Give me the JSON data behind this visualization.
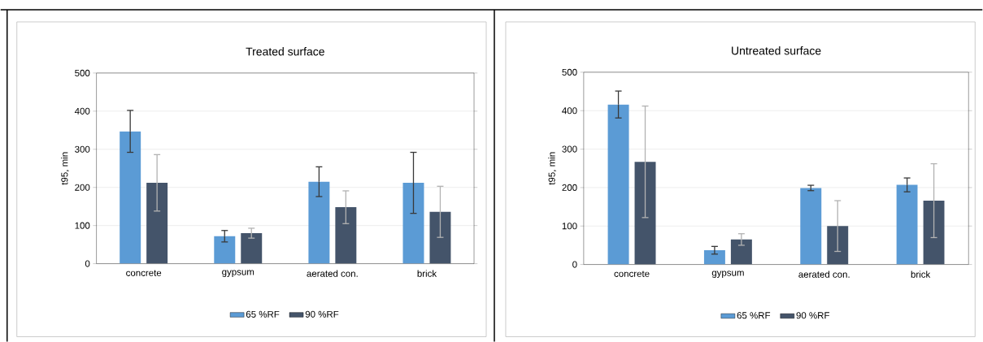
{
  "chart_data": [
    {
      "type": "bar",
      "title": "Treated surface",
      "ylabel": "t95, min",
      "categories": [
        "concrete",
        "gypsum",
        "aerated con.",
        "brick"
      ],
      "ylim": [
        0,
        500
      ],
      "yticks": [
        0,
        100,
        200,
        300,
        400,
        500
      ],
      "grid": "y",
      "legend": "bottom",
      "series": [
        {
          "name": "65 %RF",
          "color": "#5b9bd5",
          "values": [
            347,
            72,
            215,
            212
          ],
          "errors": [
            55,
            15,
            39,
            80
          ]
        },
        {
          "name": "90 %RF",
          "color": "#44546a",
          "values": [
            212,
            80,
            148,
            136
          ],
          "errors": [
            74,
            13,
            43,
            67
          ]
        }
      ]
    },
    {
      "type": "bar",
      "title": "Untreated surface",
      "ylabel": "t95, min",
      "categories": [
        "concrete",
        "gypsum",
        "aerated con.",
        "brick"
      ],
      "ylim": [
        0,
        500
      ],
      "yticks": [
        0,
        100,
        200,
        300,
        400,
        500
      ],
      "grid": "y",
      "legend": "bottom",
      "series": [
        {
          "name": "65 %RF",
          "color": "#5b9bd5",
          "values": [
            416,
            37,
            199,
            207
          ],
          "errors": [
            35,
            10,
            7,
            18
          ]
        },
        {
          "name": "90 %RF",
          "color": "#44546a",
          "values": [
            267,
            65,
            100,
            166
          ],
          "errors": [
            145,
            15,
            66,
            96
          ]
        }
      ]
    }
  ]
}
